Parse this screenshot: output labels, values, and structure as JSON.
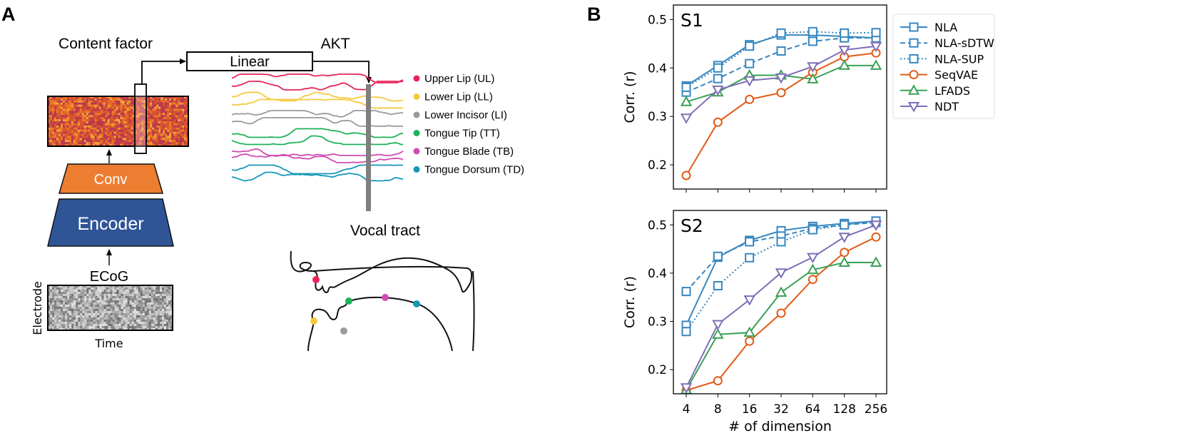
{
  "panel_a": {
    "label": "A",
    "content_factor_title": "Content factor",
    "akt_title": "AKT",
    "linear_label": "Linear",
    "conv_label": "Conv",
    "encoder_label": "Encoder",
    "ecog_label": "ECoG",
    "electrode_axis": "Electrode",
    "time_axis": "Time",
    "vocal_tract_title": "Vocal tract",
    "conv_color": "#ED7D31",
    "encoder_color": "#2F5597",
    "articulators": [
      {
        "label": "Upper Lip (UL)",
        "color": "#E8245A"
      },
      {
        "label": "Lower Lip (LL)",
        "color": "#F5C93C"
      },
      {
        "label": "Lower Incisor (LI)",
        "color": "#9A9A9A"
      },
      {
        "label": "Tongue Tip (TT)",
        "color": "#1DB15A"
      },
      {
        "label": "Tongue Blade (TB)",
        "color": "#D14BB0"
      },
      {
        "label": "Tongue Dorsum (TD)",
        "color": "#1598B8"
      }
    ]
  },
  "panel_b": {
    "label": "B",
    "legend": [
      "NLA",
      "NLA-sDTW",
      "NLA-SUP",
      "SeqVAE",
      "LFADS",
      "NDT"
    ]
  },
  "chart_data": [
    {
      "type": "line",
      "title": "S1",
      "xlabel": "",
      "ylabel": "Corr. (r)",
      "x_scale": "log2",
      "categories": [
        "4",
        "8",
        "16",
        "32",
        "64",
        "128",
        "256"
      ],
      "ylim": [
        0.15,
        0.53
      ],
      "yticks": [
        "0.2",
        "0.3",
        "0.4",
        "0.5"
      ],
      "legend_position": "right",
      "series": [
        {
          "name": "NLA",
          "color": "#3787C0",
          "style": "solid",
          "marker": "square",
          "values": [
            0.363,
            0.405,
            0.448,
            0.468,
            0.468,
            0.465,
            0.462
          ]
        },
        {
          "name": "NLA-sDTW",
          "color": "#3787C0",
          "style": "dashed",
          "marker": "square",
          "values": [
            0.35,
            0.378,
            0.409,
            0.435,
            0.455,
            0.462,
            0.462
          ]
        },
        {
          "name": "NLA-SUP",
          "color": "#3787C0",
          "style": "dotted",
          "marker": "square",
          "values": [
            0.36,
            0.4,
            0.445,
            0.472,
            0.475,
            0.472,
            0.473
          ]
        },
        {
          "name": "SeqVAE",
          "color": "#E25A17",
          "style": "solid",
          "marker": "circle",
          "values": [
            0.178,
            0.288,
            0.335,
            0.349,
            0.391,
            0.423,
            0.431
          ]
        },
        {
          "name": "LFADS",
          "color": "#3AA055",
          "style": "solid",
          "marker": "triangle-up",
          "values": [
            0.33,
            0.35,
            0.385,
            0.385,
            0.377,
            0.405,
            0.405
          ]
        },
        {
          "name": "NDT",
          "color": "#7E6FB6",
          "style": "solid",
          "marker": "triangle-down",
          "values": [
            0.297,
            0.355,
            0.374,
            0.38,
            0.403,
            0.437,
            0.445
          ]
        }
      ]
    },
    {
      "type": "line",
      "title": "S2",
      "xlabel": "# of dimension",
      "ylabel": "Corr. (r)",
      "x_scale": "log2",
      "categories": [
        "4",
        "8",
        "16",
        "32",
        "64",
        "128",
        "256"
      ],
      "ylim": [
        0.15,
        0.53
      ],
      "yticks": [
        "0.2",
        "0.3",
        "0.4",
        "0.5"
      ],
      "series": [
        {
          "name": "NLA",
          "color": "#3787C0",
          "style": "solid",
          "marker": "square",
          "values": [
            0.292,
            0.433,
            0.468,
            0.488,
            0.497,
            0.503,
            0.508
          ]
        },
        {
          "name": "NLA-sDTW",
          "color": "#3787C0",
          "style": "dashed",
          "marker": "square",
          "values": [
            0.362,
            0.435,
            0.465,
            0.477,
            0.493,
            0.5,
            0.505
          ]
        },
        {
          "name": "NLA-SUP",
          "color": "#3787C0",
          "style": "dotted",
          "marker": "square",
          "values": [
            0.279,
            0.374,
            0.432,
            0.465,
            0.49,
            0.5,
            0.508
          ]
        },
        {
          "name": "SeqVAE",
          "color": "#E25A17",
          "style": "solid",
          "marker": "circle",
          "values": [
            0.157,
            0.177,
            0.259,
            0.317,
            0.387,
            0.443,
            0.475
          ]
        },
        {
          "name": "LFADS",
          "color": "#3AA055",
          "style": "solid",
          "marker": "triangle-up",
          "values": [
            0.158,
            0.273,
            0.277,
            0.36,
            0.407,
            0.422,
            0.422
          ]
        },
        {
          "name": "NDT",
          "color": "#7E6FB6",
          "style": "solid",
          "marker": "triangle-down",
          "values": [
            0.163,
            0.294,
            0.345,
            0.401,
            0.433,
            0.475,
            0.5
          ]
        }
      ]
    }
  ]
}
